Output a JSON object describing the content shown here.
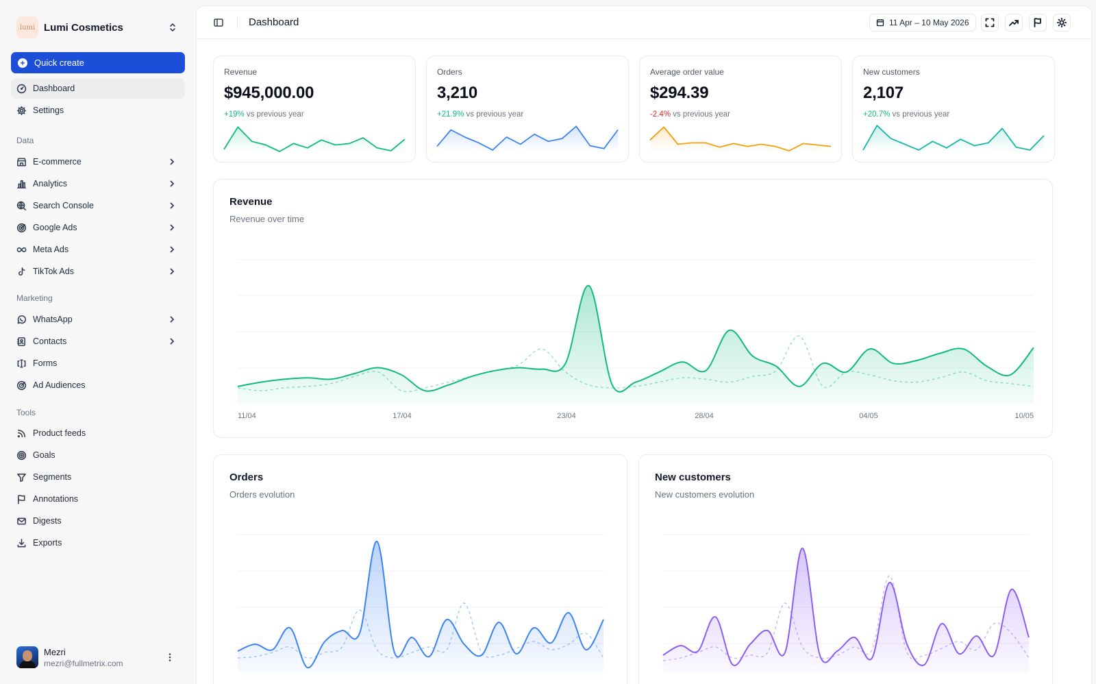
{
  "sidebar": {
    "brand": {
      "logo_text": "lumi",
      "name": "Lumi Cosmetics"
    },
    "quick_create": "Quick create",
    "top_items": [
      {
        "label": "Dashboard",
        "icon": "dashboard-icon"
      },
      {
        "label": "Settings",
        "icon": "gear-icon"
      }
    ],
    "sections": [
      {
        "title": "Data",
        "items": [
          {
            "label": "E-commerce",
            "icon": "store-icon"
          },
          {
            "label": "Analytics",
            "icon": "bar-chart-icon"
          },
          {
            "label": "Search Console",
            "icon": "globe-search-icon"
          },
          {
            "label": "Google Ads",
            "icon": "target-icon"
          },
          {
            "label": "Meta Ads",
            "icon": "infinity-icon"
          },
          {
            "label": "TikTok Ads",
            "icon": "tiktok-icon"
          }
        ]
      },
      {
        "title": "Marketing",
        "items": [
          {
            "label": "WhatsApp",
            "icon": "chat-icon"
          },
          {
            "label": "Contacts",
            "icon": "contacts-icon"
          },
          {
            "label": "Forms",
            "icon": "form-icon"
          },
          {
            "label": "Ad Audiences",
            "icon": "audience-icon"
          }
        ]
      },
      {
        "title": "Tools",
        "items": [
          {
            "label": "Product feeds",
            "icon": "rss-icon"
          },
          {
            "label": "Goals",
            "icon": "goal-icon"
          },
          {
            "label": "Segments",
            "icon": "filter-icon"
          },
          {
            "label": "Annotations",
            "icon": "flag-icon"
          },
          {
            "label": "Digests",
            "icon": "mail-icon"
          },
          {
            "label": "Exports",
            "icon": "download-icon"
          }
        ]
      }
    ],
    "user": {
      "name": "Mezri",
      "email": "mezri@fullmetrix.com"
    }
  },
  "header": {
    "title": "Dashboard",
    "date_range": "11 Apr – 10 May 2026"
  },
  "kpis": [
    {
      "label": "Revenue",
      "value": "$945,000.00",
      "delta": "+19%",
      "delta_suffix": " vs previous year",
      "trend": "up",
      "color": "#10b981",
      "spark": [
        3,
        34,
        14,
        9,
        0,
        11,
        5,
        16,
        9,
        11,
        19,
        5,
        1,
        17
      ]
    },
    {
      "label": "Orders",
      "value": "3,210",
      "delta": "+21.9%",
      "delta_suffix": " vs previous year",
      "trend": "up",
      "color": "#3b82f6",
      "spark": [
        7,
        30,
        20,
        12,
        2,
        20,
        10,
        24,
        14,
        18,
        35,
        8,
        4,
        30
      ]
    },
    {
      "label": "Average order value",
      "value": "$294.39",
      "delta": "-2.4%",
      "delta_suffix": " vs previous year",
      "trend": "down",
      "color": "#f59e0b",
      "spark": [
        16,
        34,
        10,
        12,
        12,
        6,
        11,
        7,
        10,
        7,
        1,
        11,
        9,
        7
      ]
    },
    {
      "label": "New customers",
      "value": "2,107",
      "delta": "+20.7%",
      "delta_suffix": " vs previous year",
      "trend": "up",
      "color": "#14b8a6",
      "spark": [
        2,
        36,
        18,
        10,
        2,
        14,
        5,
        17,
        8,
        12,
        32,
        6,
        2,
        22
      ]
    }
  ],
  "revenue_card": {
    "title": "Revenue",
    "subtitle": "Revenue over time",
    "chart_data": {
      "type": "area",
      "x_ticks": [
        "11/04",
        "17/04",
        "23/04",
        "28/04",
        "04/05",
        "10/05"
      ],
      "current": [
        12,
        15,
        17,
        18,
        17,
        21,
        25,
        20,
        9,
        13,
        19,
        23,
        25,
        24,
        28,
        82,
        13,
        15,
        22,
        29,
        23,
        51,
        33,
        26,
        12,
        28,
        22,
        38,
        28,
        30,
        35,
        38,
        26,
        20,
        39
      ],
      "previous": [
        11,
        9,
        11,
        12,
        14,
        19,
        22,
        9,
        11,
        15,
        19,
        23,
        27,
        38,
        22,
        13,
        11,
        12,
        15,
        18,
        17,
        15,
        19,
        23,
        47,
        12,
        22,
        20,
        16,
        15,
        18,
        22,
        16,
        14,
        12
      ],
      "color": "#10b981"
    }
  },
  "orders_card": {
    "title": "Orders",
    "subtitle": "Orders evolution",
    "chart_data": {
      "type": "area",
      "current": [
        15,
        20,
        16,
        32,
        3,
        22,
        30,
        28,
        95,
        14,
        25,
        11,
        38,
        20,
        12,
        36,
        13,
        32,
        21,
        43,
        16,
        38
      ],
      "previous": [
        10,
        11,
        14,
        18,
        10,
        14,
        18,
        45,
        16,
        10,
        14,
        18,
        16,
        50,
        14,
        12,
        17,
        22,
        16,
        20,
        28,
        10
      ],
      "color": "#3b82f6"
    }
  },
  "customers_card": {
    "title": "New customers",
    "subtitle": "New customers evolution",
    "chart_data": {
      "type": "area",
      "current": [
        12,
        19,
        15,
        40,
        5,
        20,
        30,
        14,
        90,
        12,
        15,
        25,
        10,
        65,
        20,
        5,
        35,
        13,
        26,
        12,
        60,
        25
      ],
      "previous": [
        8,
        10,
        14,
        18,
        10,
        12,
        14,
        50,
        18,
        10,
        12,
        18,
        16,
        70,
        14,
        12,
        17,
        22,
        16,
        35,
        28,
        10
      ],
      "color": "#8b5cf6"
    }
  }
}
